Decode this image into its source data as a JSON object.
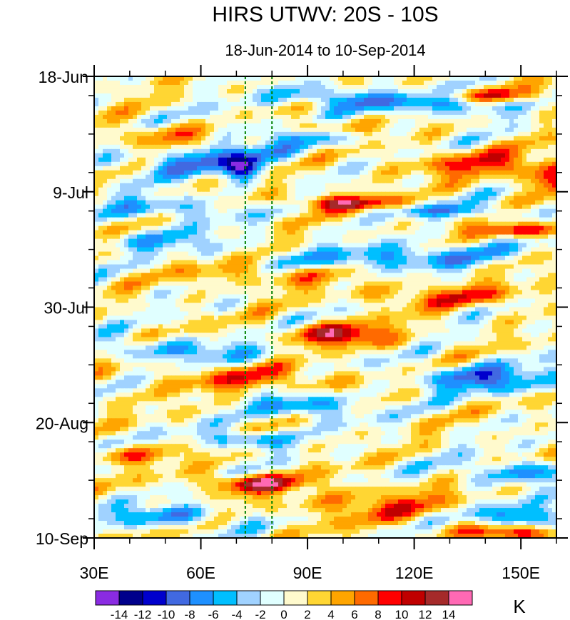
{
  "chart_data": {
    "type": "heatmap",
    "title": "HIRS UTWV: 20S - 10S",
    "subtitle": "18-Jun-2014 to 10-Sep-2014",
    "xlabel": "",
    "ylabel": "",
    "xlim": [
      30,
      160
    ],
    "ylim_days": [
      0,
      84
    ],
    "x_ticks": [
      {
        "value": 30,
        "label": "30E"
      },
      {
        "value": 60,
        "label": "60E"
      },
      {
        "value": 90,
        "label": "90E"
      },
      {
        "value": 120,
        "label": "120E"
      },
      {
        "value": 150,
        "label": "150E"
      }
    ],
    "y_ticks": [
      {
        "day": 0,
        "label": "18-Jun"
      },
      {
        "day": 21,
        "label": "9-Jul"
      },
      {
        "day": 42,
        "label": "30-Jul"
      },
      {
        "day": 63,
        "label": "20-Aug"
      },
      {
        "day": 84,
        "label": "10-Sep"
      }
    ],
    "reference_lines_lon": [
      72.5,
      80
    ],
    "colorbar": {
      "unit": "K",
      "levels": [
        -14,
        -12,
        -10,
        -8,
        -6,
        -4,
        -2,
        0,
        2,
        4,
        6,
        8,
        10,
        12,
        14
      ],
      "labels": [
        "-14",
        "-12",
        "-10",
        "-8",
        "-6",
        "-4",
        "-2",
        "0",
        "2",
        "4",
        "6",
        "8",
        "10",
        "12",
        "14"
      ],
      "colors": [
        "#8a2be2",
        "#00008b",
        "#0000cd",
        "#4169e1",
        "#1e90ff",
        "#00bfff",
        "#a0d2ff",
        "#e0ffff",
        "#fffacd",
        "#ffd633",
        "#ffa500",
        "#ff6a00",
        "#ff0000",
        "#c00000",
        "#a52a2a",
        "#ff69b4"
      ]
    },
    "anomaly_bands": [
      {
        "lon0": 62,
        "day0": 15,
        "slope": -0.06,
        "amp": -9,
        "wlon": 22,
        "wday": 2.6
      },
      {
        "lon0": 72,
        "day0": 17,
        "slope": 0,
        "amp": -11,
        "wlon": 5,
        "wday": 2
      },
      {
        "lon0": 100,
        "day0": 4,
        "slope": 0.02,
        "amp": -8,
        "wlon": 18,
        "wday": 2
      },
      {
        "lon0": 130,
        "day0": 5,
        "slope": 0,
        "amp": -8,
        "wlon": 14,
        "wday": 2
      },
      {
        "lon0": 85,
        "day0": 10,
        "slope": 0.05,
        "amp": -7,
        "wlon": 20,
        "wday": 2
      },
      {
        "lon0": 90,
        "day0": 9.5,
        "slope": 0,
        "amp": 8,
        "wlon": 16,
        "wday": 1.4
      },
      {
        "lon0": 50,
        "day0": 11,
        "slope": 0,
        "amp": 5,
        "wlon": 16,
        "wday": 2.5
      },
      {
        "lon0": 140,
        "day0": 3.5,
        "slope": 0,
        "amp": 7,
        "wlon": 18,
        "wday": 1.2
      },
      {
        "lon0": 140,
        "day0": 16,
        "slope": 0,
        "amp": 7,
        "wlon": 22,
        "wday": 2.5
      },
      {
        "lon0": 160,
        "day0": 19,
        "slope": 0,
        "amp": 9,
        "wlon": 8,
        "wday": 2.5
      },
      {
        "lon0": 100,
        "day0": 23,
        "slope": 0,
        "amp": 11,
        "wlon": 14,
        "wday": 1.4
      },
      {
        "lon0": 50,
        "day0": 24,
        "slope": 0,
        "amp": -6,
        "wlon": 20,
        "wday": 2
      },
      {
        "lon0": 130,
        "day0": 24.5,
        "slope": 0,
        "amp": -6,
        "wlon": 20,
        "wday": 1.2
      },
      {
        "lon0": 150,
        "day0": 28,
        "slope": 0,
        "amp": 9,
        "wlon": 14,
        "wday": 1.2
      },
      {
        "lon0": 115,
        "day0": 33,
        "slope": -0.03,
        "amp": -8,
        "wlon": 30,
        "wday": 2.2
      },
      {
        "lon0": 50,
        "day0": 30,
        "slope": 0,
        "amp": -5,
        "wlon": 18,
        "wday": 2
      },
      {
        "lon0": 80,
        "day0": 36,
        "slope": 0,
        "amp": 5,
        "wlon": 25,
        "wday": 2
      },
      {
        "lon0": 130,
        "day0": 40,
        "slope": 0,
        "amp": 6,
        "wlon": 25,
        "wday": 2
      },
      {
        "lon0": 100,
        "day0": 47,
        "slope": 0,
        "amp": 11,
        "wlon": 14,
        "wday": 2
      },
      {
        "lon0": 55,
        "day0": 50,
        "slope": 0.02,
        "amp": -6,
        "wlon": 25,
        "wday": 2
      },
      {
        "lon0": 140,
        "day0": 55,
        "slope": 0,
        "amp": -9,
        "wlon": 20,
        "wday": 2.5
      },
      {
        "lon0": 75,
        "day0": 55,
        "slope": 0,
        "amp": 6,
        "wlon": 25,
        "wday": 2.5
      },
      {
        "lon0": 90,
        "day0": 60,
        "slope": 0,
        "amp": -8,
        "wlon": 14,
        "wday": 2.2
      },
      {
        "lon0": 72,
        "day0": 66,
        "slope": 0,
        "amp": -8,
        "wlon": 12,
        "wday": 1.5
      },
      {
        "lon0": 40,
        "day0": 69,
        "slope": 0,
        "amp": 6,
        "wlon": 14,
        "wday": 1.6
      },
      {
        "lon0": 75,
        "day0": 74,
        "slope": 0,
        "amp": 11,
        "wlon": 14,
        "wday": 1.6
      },
      {
        "lon0": 50,
        "day0": 80,
        "slope": 0,
        "amp": -7,
        "wlon": 18,
        "wday": 2
      },
      {
        "lon0": 150,
        "day0": 72,
        "slope": 0,
        "amp": -7,
        "wlon": 18,
        "wday": 2
      },
      {
        "lon0": 150,
        "day0": 80,
        "slope": 0,
        "amp": -9,
        "wlon": 14,
        "wday": 2
      },
      {
        "lon0": 145,
        "day0": 83,
        "slope": 0,
        "amp": 9,
        "wlon": 14,
        "wday": 1.2
      },
      {
        "lon0": 110,
        "day0": 78,
        "slope": 0,
        "amp": 6,
        "wlon": 25,
        "wday": 3
      }
    ]
  }
}
